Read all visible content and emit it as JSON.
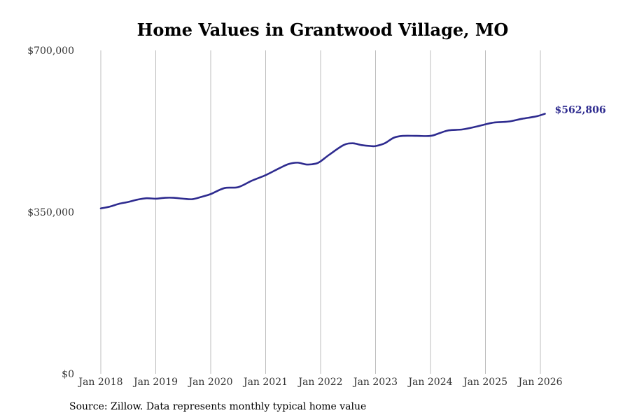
{
  "chart_data": {
    "type": "line",
    "title": "Home Values in Grantwood Village, MO",
    "xlabel": "",
    "ylabel": "",
    "ylim": [
      0,
      700000
    ],
    "y_ticks": [
      {
        "value": 0,
        "label": "$0"
      },
      {
        "value": 350000,
        "label": "$350,000"
      },
      {
        "value": 700000,
        "label": "$700,000"
      }
    ],
    "xlim": [
      2018.0,
      2026.083
    ],
    "x_ticks": [
      {
        "value": 2018,
        "label": "Jan 2018"
      },
      {
        "value": 2019,
        "label": "Jan 2019"
      },
      {
        "value": 2020,
        "label": "Jan 2020"
      },
      {
        "value": 2021,
        "label": "Jan 2021"
      },
      {
        "value": 2022,
        "label": "Jan 2022"
      },
      {
        "value": 2023,
        "label": "Jan 2023"
      },
      {
        "value": 2024,
        "label": "Jan 2024"
      },
      {
        "value": 2025,
        "label": "Jan 2025"
      },
      {
        "value": 2026,
        "label": "Jan 2026"
      }
    ],
    "grid": "vertical",
    "series": [
      {
        "name": "Typical home value",
        "color": "#2e2b8f",
        "end_label": "$562,806",
        "x": [
          2018.0,
          2018.167,
          2018.333,
          2018.5,
          2018.667,
          2018.833,
          2019.0,
          2019.167,
          2019.333,
          2019.5,
          2019.667,
          2019.833,
          2020.0,
          2020.25,
          2020.5,
          2020.75,
          2021.0,
          2021.25,
          2021.417,
          2021.583,
          2021.75,
          2021.917,
          2022.0,
          2022.167,
          2022.417,
          2022.583,
          2022.75,
          2022.917,
          2023.0,
          2023.167,
          2023.333,
          2023.5,
          2023.75,
          2024.0,
          2024.167,
          2024.333,
          2024.583,
          2024.833,
          2025.0,
          2025.167,
          2025.417,
          2025.667,
          2025.917,
          2026.083
        ],
        "values": [
          358000,
          362000,
          368000,
          372000,
          377000,
          380000,
          379000,
          381000,
          381000,
          379000,
          378000,
          383000,
          389000,
          402000,
          404000,
          418000,
          430000,
          445000,
          454000,
          457000,
          453000,
          455000,
          460000,
          475000,
          495000,
          499000,
          495000,
          493000,
          493000,
          499000,
          511000,
          515000,
          515000,
          515000,
          521000,
          527000,
          529000,
          535000,
          540000,
          544000,
          546000,
          552000,
          557000,
          562806
        ]
      }
    ]
  },
  "footer": {
    "source": "Source: Zillow. Data represents monthly typical home value"
  }
}
